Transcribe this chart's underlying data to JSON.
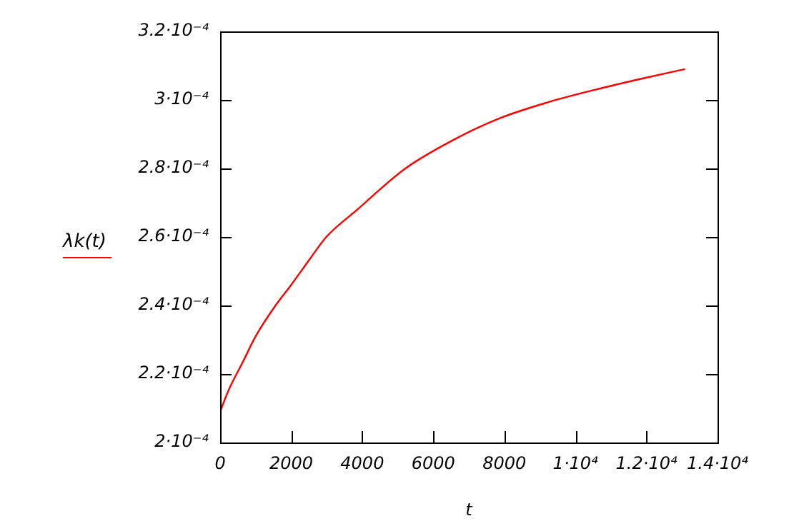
{
  "chart_data": {
    "type": "line",
    "xlabel": "t",
    "legend": "left",
    "grid": false,
    "marker": "none",
    "line_style": "solid",
    "x": [
      0,
      241,
      644,
      1000,
      1581,
      2000,
      2521,
      2989,
      3862,
      5202,
      6544,
      7884,
      9224,
      10567,
      11907,
      13086
    ],
    "series": [
      {
        "name": "λk(t)",
        "color": "#ff0000",
        "values": [
          0.000209,
          0.0002153,
          0.0002236,
          0.000231,
          0.0002403,
          0.000246,
          0.0002535,
          0.00026,
          0.000268,
          0.0002799,
          0.0002882,
          0.0002947,
          0.0002993,
          0.000303,
          0.0003063,
          0.000309
        ]
      }
    ],
    "xlim": [
      0,
      14000
    ],
    "xticks": [
      0,
      2000,
      4000,
      6000,
      8000,
      {
        "value": 10000,
        "label": "1·10⁴"
      },
      {
        "value": 12000,
        "label": "1.2·10⁴"
      },
      {
        "value": 14000,
        "label": "1.4·10⁴"
      }
    ],
    "ylim": [
      0.0002,
      0.00032
    ],
    "yticks": [
      {
        "value": 0.0002,
        "label": "2·10⁻⁴"
      },
      {
        "value": 0.00022,
        "label": "2.2·10⁻⁴"
      },
      {
        "value": 0.00024,
        "label": "2.4·10⁻⁴"
      },
      {
        "value": 0.00026,
        "label": "2.6·10⁻⁴"
      },
      {
        "value": 0.00028,
        "label": "2.8·10⁻⁴"
      },
      {
        "value": 0.0003,
        "label": "3·10⁻⁴"
      },
      {
        "value": 0.00032,
        "label": "3.2·10⁻⁴"
      }
    ]
  }
}
